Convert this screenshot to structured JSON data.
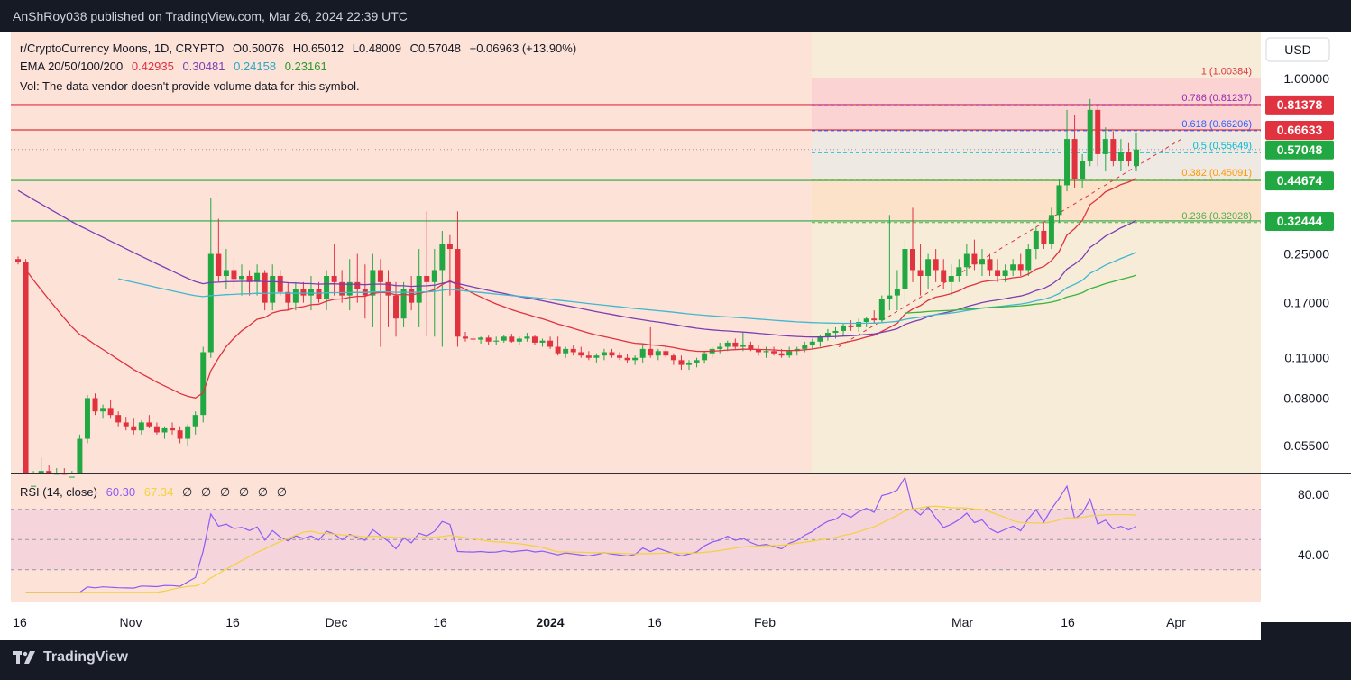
{
  "header": {
    "published": "AnShRoy038 published on TradingView.com, Mar 26, 2024 22:39 UTC"
  },
  "brand": {
    "name": "TradingView"
  },
  "legend": {
    "symbol": "r/CryptoCurrency Moons, 1D, CRYPTO",
    "open": "O0.50076",
    "high": "H0.65012",
    "low": "L0.48009",
    "close": "C0.57048",
    "change": "+0.06963 (+13.90%)",
    "ema_label": "EMA 20/50/100/200",
    "ema20": "0.42935",
    "ema50": "0.30481",
    "ema100": "0.24158",
    "ema200": "0.23161",
    "vol": "Vol: The data vendor doesn't provide volume data for this symbol."
  },
  "rsi_legend": {
    "label": "RSI (14, close)",
    "rsi": "60.30",
    "ma": "67.34",
    "extras": [
      "∅",
      "∅",
      "∅",
      "∅",
      "∅",
      "∅"
    ]
  },
  "currency": "USD",
  "colors": {
    "up": "#22a843",
    "down": "#e0323f",
    "ema20": "#e0323f",
    "ema50": "#7b3fb3",
    "ema100": "#3fb8d0",
    "ema200": "#3ab33a",
    "rsi": "#8b5cf6",
    "rsi_ma": "#f2d23b",
    "bg_price": "#fde2d8"
  },
  "chart_data": {
    "type": "candlestick",
    "title": "r/CryptoCurrency Moons, 1D, CRYPTO",
    "y_scale": "log",
    "y_ticks": [
      "1.00000",
      "0.25000",
      "0.17000",
      "0.11000",
      "0.08000",
      "0.05500"
    ],
    "x_ticks": [
      "16",
      "Nov",
      "16",
      "Dec",
      "16",
      "2024",
      "16",
      "Feb",
      "Mar",
      "16",
      "Apr"
    ],
    "price_labels": [
      {
        "text": "0.81378",
        "value": 0.81378,
        "color": "#e0323f"
      },
      {
        "text": "0.66633",
        "value": 0.66633,
        "color": "#e0323f"
      },
      {
        "text": "0.57048",
        "value": 0.57048,
        "color": "#22a843"
      },
      {
        "text": "0.44674",
        "value": 0.44674,
        "color": "#22a843"
      },
      {
        "text": "0.32444",
        "value": 0.32444,
        "color": "#22a843"
      }
    ],
    "horizontal_lines": [
      {
        "value": 0.81378,
        "color": "#e0323f"
      },
      {
        "value": 0.66633,
        "color": "#e0323f"
      },
      {
        "value": 0.44674,
        "color": "#22a843"
      },
      {
        "value": 0.32444,
        "color": "#22a843"
      }
    ],
    "fib_levels": [
      {
        "label": "1 (1.00384)",
        "value": 1.00384,
        "color": "#e0323f"
      },
      {
        "label": "0.786 (0.81237)",
        "value": 0.81237,
        "color": "#9c27b0"
      },
      {
        "label": "0.618 (0.66206)",
        "value": 0.66206,
        "color": "#2962ff"
      },
      {
        "label": "0.5 (0.55649)",
        "value": 0.55649,
        "color": "#00bcd4"
      },
      {
        "label": "0.382 (0.45091)",
        "value": 0.45091,
        "color": "#ff9800"
      },
      {
        "label": "0.236 (0.32028)",
        "value": 0.32028,
        "color": "#4caf50"
      }
    ],
    "candles": [
      [
        0.24,
        0.245,
        0.23,
        0.235
      ],
      [
        0.235,
        0.24,
        0.04,
        0.04
      ],
      [
        0.04,
        0.045,
        0.035,
        0.04
      ],
      [
        0.04,
        0.05,
        0.035,
        0.045
      ],
      [
        0.045,
        0.047,
        0.04,
        0.042
      ],
      [
        0.042,
        0.046,
        0.039,
        0.044
      ],
      [
        0.044,
        0.046,
        0.04,
        0.041
      ],
      [
        0.041,
        0.045,
        0.038,
        0.043
      ],
      [
        0.043,
        0.06,
        0.042,
        0.058
      ],
      [
        0.058,
        0.082,
        0.056,
        0.08
      ],
      [
        0.08,
        0.083,
        0.07,
        0.072
      ],
      [
        0.072,
        0.076,
        0.068,
        0.074
      ],
      [
        0.074,
        0.079,
        0.068,
        0.07
      ],
      [
        0.07,
        0.072,
        0.064,
        0.066
      ],
      [
        0.066,
        0.069,
        0.062,
        0.064
      ],
      [
        0.064,
        0.068,
        0.06,
        0.062
      ],
      [
        0.062,
        0.067,
        0.06,
        0.066
      ],
      [
        0.066,
        0.07,
        0.063,
        0.064
      ],
      [
        0.064,
        0.066,
        0.06,
        0.061
      ],
      [
        0.061,
        0.064,
        0.058,
        0.063
      ],
      [
        0.063,
        0.066,
        0.06,
        0.062
      ],
      [
        0.062,
        0.064,
        0.056,
        0.058
      ],
      [
        0.058,
        0.065,
        0.055,
        0.064
      ],
      [
        0.064,
        0.072,
        0.06,
        0.07
      ],
      [
        0.07,
        0.12,
        0.066,
        0.115
      ],
      [
        0.115,
        0.39,
        0.11,
        0.25
      ],
      [
        0.25,
        0.33,
        0.2,
        0.21
      ],
      [
        0.21,
        0.26,
        0.19,
        0.22
      ],
      [
        0.22,
        0.24,
        0.19,
        0.205
      ],
      [
        0.205,
        0.23,
        0.18,
        0.21
      ],
      [
        0.21,
        0.22,
        0.18,
        0.2
      ],
      [
        0.2,
        0.23,
        0.18,
        0.215
      ],
      [
        0.215,
        0.22,
        0.16,
        0.17
      ],
      [
        0.17,
        0.23,
        0.16,
        0.21
      ],
      [
        0.21,
        0.22,
        0.18,
        0.185
      ],
      [
        0.185,
        0.2,
        0.16,
        0.17
      ],
      [
        0.17,
        0.2,
        0.16,
        0.19
      ],
      [
        0.19,
        0.2,
        0.17,
        0.18
      ],
      [
        0.18,
        0.21,
        0.16,
        0.19
      ],
      [
        0.19,
        0.2,
        0.17,
        0.175
      ],
      [
        0.175,
        0.22,
        0.16,
        0.21
      ],
      [
        0.21,
        0.27,
        0.18,
        0.2
      ],
      [
        0.2,
        0.22,
        0.17,
        0.18
      ],
      [
        0.18,
        0.24,
        0.16,
        0.2
      ],
      [
        0.2,
        0.25,
        0.17,
        0.19
      ],
      [
        0.19,
        0.23,
        0.15,
        0.18
      ],
      [
        0.18,
        0.25,
        0.14,
        0.22
      ],
      [
        0.22,
        0.24,
        0.12,
        0.2
      ],
      [
        0.2,
        0.22,
        0.14,
        0.18
      ],
      [
        0.18,
        0.2,
        0.13,
        0.15
      ],
      [
        0.15,
        0.2,
        0.14,
        0.19
      ],
      [
        0.19,
        0.21,
        0.16,
        0.17
      ],
      [
        0.17,
        0.26,
        0.14,
        0.21
      ],
      [
        0.21,
        0.35,
        0.13,
        0.2
      ],
      [
        0.2,
        0.26,
        0.13,
        0.22
      ],
      [
        0.22,
        0.3,
        0.12,
        0.27
      ],
      [
        0.27,
        0.29,
        0.18,
        0.26
      ],
      [
        0.26,
        0.35,
        0.12,
        0.13
      ],
      [
        0.13,
        0.135,
        0.125,
        0.128
      ],
      [
        0.128,
        0.132,
        0.124,
        0.127
      ],
      [
        0.127,
        0.13,
        0.123,
        0.129
      ],
      [
        0.129,
        0.131,
        0.122,
        0.125
      ],
      [
        0.125,
        0.13,
        0.122,
        0.126
      ],
      [
        0.126,
        0.132,
        0.124,
        0.13
      ],
      [
        0.13,
        0.133,
        0.124,
        0.125
      ],
      [
        0.125,
        0.13,
        0.122,
        0.128
      ],
      [
        0.128,
        0.134,
        0.125,
        0.13
      ],
      [
        0.13,
        0.132,
        0.122,
        0.124
      ],
      [
        0.124,
        0.128,
        0.12,
        0.126
      ],
      [
        0.126,
        0.13,
        0.118,
        0.12
      ],
      [
        0.12,
        0.13,
        0.112,
        0.114
      ],
      [
        0.114,
        0.12,
        0.11,
        0.118
      ],
      [
        0.118,
        0.122,
        0.112,
        0.115
      ],
      [
        0.115,
        0.12,
        0.11,
        0.112
      ],
      [
        0.112,
        0.116,
        0.108,
        0.11
      ],
      [
        0.11,
        0.114,
        0.106,
        0.112
      ],
      [
        0.112,
        0.118,
        0.108,
        0.115
      ],
      [
        0.115,
        0.118,
        0.11,
        0.112
      ],
      [
        0.112,
        0.115,
        0.108,
        0.11
      ],
      [
        0.11,
        0.113,
        0.106,
        0.108
      ],
      [
        0.108,
        0.112,
        0.104,
        0.11
      ],
      [
        0.11,
        0.122,
        0.106,
        0.118
      ],
      [
        0.118,
        0.14,
        0.11,
        0.112
      ],
      [
        0.112,
        0.118,
        0.108,
        0.116
      ],
      [
        0.116,
        0.12,
        0.11,
        0.112
      ],
      [
        0.112,
        0.114,
        0.104,
        0.108
      ],
      [
        0.108,
        0.112,
        0.1,
        0.104
      ],
      [
        0.104,
        0.108,
        0.1,
        0.106
      ],
      [
        0.106,
        0.11,
        0.102,
        0.108
      ],
      [
        0.108,
        0.116,
        0.105,
        0.114
      ],
      [
        0.114,
        0.12,
        0.11,
        0.118
      ],
      [
        0.118,
        0.124,
        0.114,
        0.12
      ],
      [
        0.12,
        0.126,
        0.116,
        0.124
      ],
      [
        0.124,
        0.128,
        0.118,
        0.12
      ],
      [
        0.12,
        0.135,
        0.116,
        0.122
      ],
      [
        0.122,
        0.125,
        0.116,
        0.118
      ],
      [
        0.118,
        0.122,
        0.112,
        0.115
      ],
      [
        0.115,
        0.12,
        0.11,
        0.116
      ],
      [
        0.116,
        0.12,
        0.112,
        0.114
      ],
      [
        0.114,
        0.118,
        0.11,
        0.112
      ],
      [
        0.112,
        0.12,
        0.11,
        0.116
      ],
      [
        0.116,
        0.12,
        0.112,
        0.118
      ],
      [
        0.118,
        0.125,
        0.115,
        0.122
      ],
      [
        0.122,
        0.128,
        0.118,
        0.125
      ],
      [
        0.125,
        0.132,
        0.12,
        0.13
      ],
      [
        0.13,
        0.138,
        0.126,
        0.134
      ],
      [
        0.134,
        0.14,
        0.128,
        0.136
      ],
      [
        0.136,
        0.145,
        0.132,
        0.142
      ],
      [
        0.142,
        0.148,
        0.136,
        0.14
      ],
      [
        0.14,
        0.15,
        0.135,
        0.146
      ],
      [
        0.146,
        0.152,
        0.14,
        0.15
      ],
      [
        0.15,
        0.16,
        0.144,
        0.148
      ],
      [
        0.148,
        0.18,
        0.145,
        0.175
      ],
      [
        0.175,
        0.34,
        0.16,
        0.18
      ],
      [
        0.18,
        0.22,
        0.16,
        0.19
      ],
      [
        0.19,
        0.28,
        0.17,
        0.26
      ],
      [
        0.26,
        0.36,
        0.2,
        0.22
      ],
      [
        0.22,
        0.27,
        0.18,
        0.21
      ],
      [
        0.21,
        0.25,
        0.19,
        0.24
      ],
      [
        0.24,
        0.26,
        0.2,
        0.22
      ],
      [
        0.22,
        0.24,
        0.19,
        0.2
      ],
      [
        0.2,
        0.23,
        0.18,
        0.21
      ],
      [
        0.21,
        0.24,
        0.2,
        0.225
      ],
      [
        0.225,
        0.27,
        0.21,
        0.25
      ],
      [
        0.25,
        0.28,
        0.22,
        0.23
      ],
      [
        0.23,
        0.26,
        0.21,
        0.24
      ],
      [
        0.24,
        0.25,
        0.21,
        0.22
      ],
      [
        0.22,
        0.24,
        0.2,
        0.21
      ],
      [
        0.21,
        0.23,
        0.2,
        0.22
      ],
      [
        0.22,
        0.24,
        0.21,
        0.23
      ],
      [
        0.23,
        0.25,
        0.21,
        0.22
      ],
      [
        0.22,
        0.27,
        0.21,
        0.26
      ],
      [
        0.26,
        0.31,
        0.24,
        0.3
      ],
      [
        0.3,
        0.32,
        0.26,
        0.27
      ],
      [
        0.27,
        0.36,
        0.26,
        0.34
      ],
      [
        0.34,
        0.45,
        0.32,
        0.43
      ],
      [
        0.43,
        0.78,
        0.41,
        0.62
      ],
      [
        0.62,
        0.75,
        0.42,
        0.45
      ],
      [
        0.45,
        0.55,
        0.42,
        0.52
      ],
      [
        0.52,
        0.85,
        0.5,
        0.78
      ],
      [
        0.78,
        0.82,
        0.5,
        0.55
      ],
      [
        0.55,
        0.68,
        0.48,
        0.62
      ],
      [
        0.62,
        0.66,
        0.5,
        0.52
      ],
      [
        0.52,
        0.62,
        0.48,
        0.56
      ],
      [
        0.56,
        0.6,
        0.5,
        0.52
      ],
      [
        0.5008,
        0.65012,
        0.48009,
        0.57048
      ]
    ],
    "rsi": {
      "label": "RSI (14, close)",
      "value": 60.3,
      "ma": 67.34,
      "levels": [
        70,
        50,
        30
      ],
      "y_ticks": [
        "80.00",
        "40.00"
      ]
    }
  }
}
